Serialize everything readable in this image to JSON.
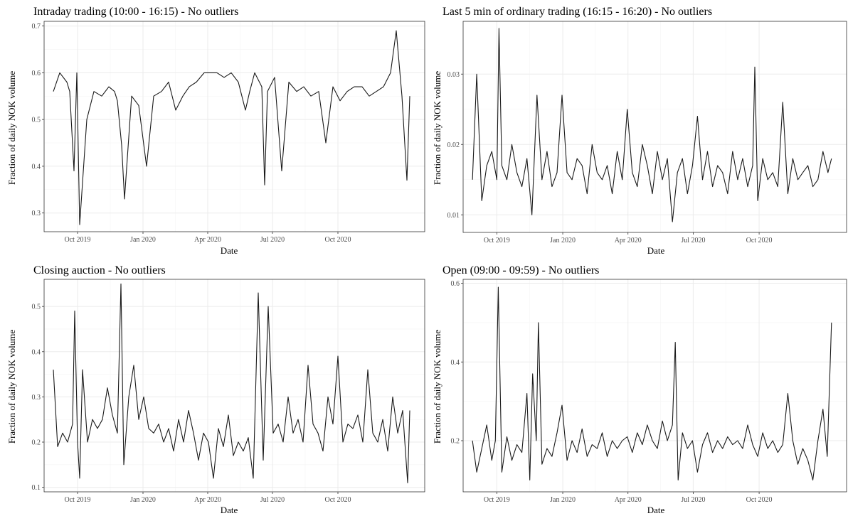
{
  "chart_data": [
    {
      "type": "line",
      "title": "Intraday trading (10:00 - 16:15) - No outliers",
      "xlabel": "Date",
      "ylabel": "Fraction of daily NOK volume",
      "xlim": [
        "2019-08-15",
        "2021-01-31"
      ],
      "ylim": [
        0.26,
        0.71
      ],
      "x_ticks": [
        {
          "date": "2019-10-01",
          "label": "Oct 2019"
        },
        {
          "date": "2020-01-01",
          "label": "Jan 2020"
        },
        {
          "date": "2020-04-01",
          "label": "Apr 2020"
        },
        {
          "date": "2020-07-01",
          "label": "Jul 2020"
        },
        {
          "date": "2020-10-01",
          "label": "Oct 2020"
        }
      ],
      "y_ticks": [
        0.3,
        0.4,
        0.5,
        0.6,
        0.7
      ],
      "grid": true,
      "series": [
        {
          "x": [
            "2019-08-28",
            "2019-09-06",
            "2019-09-16",
            "2019-09-20",
            "2019-09-26",
            "2019-09-30",
            "2019-10-04",
            "2019-10-14",
            "2019-10-24",
            "2019-11-04",
            "2019-11-14",
            "2019-11-22",
            "2019-11-26",
            "2019-12-02",
            "2019-12-06",
            "2019-12-16",
            "2019-12-26",
            "2020-01-06",
            "2020-01-16",
            "2020-01-27",
            "2020-02-06",
            "2020-02-16",
            "2020-02-26",
            "2020-03-06",
            "2020-03-16",
            "2020-03-27",
            "2020-04-03",
            "2020-04-14",
            "2020-04-24",
            "2020-05-04",
            "2020-05-14",
            "2020-05-24",
            "2020-05-30",
            "2020-06-06",
            "2020-06-16",
            "2020-06-20",
            "2020-06-24",
            "2020-07-04",
            "2020-07-14",
            "2020-07-24",
            "2020-08-04",
            "2020-08-14",
            "2020-08-24",
            "2020-09-04",
            "2020-09-14",
            "2020-09-24",
            "2020-10-04",
            "2020-10-14",
            "2020-10-24",
            "2020-11-04",
            "2020-11-14",
            "2020-11-24",
            "2020-12-04",
            "2020-12-14",
            "2020-12-22",
            "2020-12-30",
            "2021-01-06",
            "2021-01-10"
          ],
          "values": [
            0.56,
            0.6,
            0.58,
            0.56,
            0.39,
            0.6,
            0.275,
            0.5,
            0.56,
            0.55,
            0.57,
            0.56,
            0.54,
            0.445,
            0.33,
            0.55,
            0.53,
            0.4,
            0.55,
            0.56,
            0.58,
            0.52,
            0.55,
            0.57,
            0.58,
            0.6,
            0.6,
            0.6,
            0.59,
            0.6,
            0.58,
            0.52,
            0.56,
            0.6,
            0.57,
            0.36,
            0.56,
            0.59,
            0.39,
            0.58,
            0.56,
            0.57,
            0.55,
            0.56,
            0.45,
            0.57,
            0.54,
            0.56,
            0.57,
            0.57,
            0.55,
            0.56,
            0.57,
            0.6,
            0.69,
            0.55,
            0.37,
            0.55
          ]
        }
      ]
    },
    {
      "type": "line",
      "title": "Last 5 min of ordinary trading (16:15 - 16:20) - No outliers",
      "xlabel": "Date",
      "ylabel": "Fraction of daily NOK volume",
      "xlim": [
        "2019-08-15",
        "2021-01-31"
      ],
      "ylim": [
        0.0075,
        0.0375
      ],
      "x_ticks": [
        {
          "date": "2019-10-01",
          "label": "Oct 2019"
        },
        {
          "date": "2020-01-01",
          "label": "Jan 2020"
        },
        {
          "date": "2020-04-01",
          "label": "Apr 2020"
        },
        {
          "date": "2020-07-01",
          "label": "Jul 2020"
        },
        {
          "date": "2020-10-01",
          "label": "Oct 2020"
        }
      ],
      "y_ticks": [
        0.01,
        0.02,
        0.03
      ],
      "grid": true,
      "series": [
        {
          "x": [
            "2019-08-28",
            "2019-09-03",
            "2019-09-10",
            "2019-09-17",
            "2019-09-24",
            "2019-10-01",
            "2019-10-04",
            "2019-10-08",
            "2019-10-15",
            "2019-10-22",
            "2019-10-29",
            "2019-11-05",
            "2019-11-12",
            "2019-11-19",
            "2019-11-26",
            "2019-12-03",
            "2019-12-10",
            "2019-12-17",
            "2019-12-24",
            "2019-12-31",
            "2020-01-07",
            "2020-01-14",
            "2020-01-21",
            "2020-01-28",
            "2020-02-04",
            "2020-02-11",
            "2020-02-18",
            "2020-02-25",
            "2020-03-03",
            "2020-03-10",
            "2020-03-17",
            "2020-03-24",
            "2020-03-31",
            "2020-04-07",
            "2020-04-14",
            "2020-04-21",
            "2020-04-28",
            "2020-05-05",
            "2020-05-12",
            "2020-05-19",
            "2020-05-26",
            "2020-06-02",
            "2020-06-09",
            "2020-06-16",
            "2020-06-23",
            "2020-06-30",
            "2020-07-07",
            "2020-07-14",
            "2020-07-21",
            "2020-07-28",
            "2020-08-04",
            "2020-08-11",
            "2020-08-18",
            "2020-08-25",
            "2020-09-01",
            "2020-09-08",
            "2020-09-15",
            "2020-09-22",
            "2020-09-25",
            "2020-09-29",
            "2020-10-06",
            "2020-10-13",
            "2020-10-20",
            "2020-10-27",
            "2020-11-03",
            "2020-11-10",
            "2020-11-17",
            "2020-11-24",
            "2020-12-01",
            "2020-12-08",
            "2020-12-15",
            "2020-12-22",
            "2020-12-29",
            "2021-01-05",
            "2021-01-10"
          ],
          "values": [
            0.015,
            0.03,
            0.012,
            0.017,
            0.019,
            0.015,
            0.0365,
            0.017,
            0.015,
            0.02,
            0.016,
            0.014,
            0.018,
            0.01,
            0.027,
            0.015,
            0.019,
            0.014,
            0.016,
            0.027,
            0.016,
            0.015,
            0.018,
            0.017,
            0.013,
            0.02,
            0.016,
            0.015,
            0.017,
            0.013,
            0.019,
            0.015,
            0.025,
            0.016,
            0.014,
            0.02,
            0.017,
            0.013,
            0.019,
            0.015,
            0.018,
            0.009,
            0.016,
            0.018,
            0.013,
            0.017,
            0.024,
            0.015,
            0.019,
            0.014,
            0.017,
            0.016,
            0.013,
            0.019,
            0.015,
            0.018,
            0.014,
            0.017,
            0.031,
            0.012,
            0.018,
            0.015,
            0.016,
            0.014,
            0.026,
            0.013,
            0.018,
            0.015,
            0.016,
            0.017,
            0.014,
            0.015,
            0.019,
            0.016,
            0.018
          ]
        }
      ]
    },
    {
      "type": "line",
      "title": "Closing auction - No outliers",
      "xlabel": "Date",
      "ylabel": "Fraction of daily NOK volume",
      "xlim": [
        "2019-08-15",
        "2021-01-31"
      ],
      "ylim": [
        0.09,
        0.56
      ],
      "x_ticks": [
        {
          "date": "2019-10-01",
          "label": "Oct 2019"
        },
        {
          "date": "2020-01-01",
          "label": "Jan 2020"
        },
        {
          "date": "2020-04-01",
          "label": "Apr 2020"
        },
        {
          "date": "2020-07-01",
          "label": "Jul 2020"
        },
        {
          "date": "2020-10-01",
          "label": "Oct 2020"
        }
      ],
      "y_ticks": [
        0.1,
        0.2,
        0.3,
        0.4,
        0.5
      ],
      "grid": true,
      "series": [
        {
          "x": [
            "2019-08-28",
            "2019-09-03",
            "2019-09-10",
            "2019-09-17",
            "2019-09-24",
            "2019-09-27",
            "2019-10-01",
            "2019-10-04",
            "2019-10-08",
            "2019-10-15",
            "2019-10-22",
            "2019-10-29",
            "2019-11-05",
            "2019-11-12",
            "2019-11-19",
            "2019-11-26",
            "2019-12-01",
            "2019-12-05",
            "2019-12-12",
            "2019-12-19",
            "2019-12-26",
            "2020-01-02",
            "2020-01-09",
            "2020-01-16",
            "2020-01-23",
            "2020-01-30",
            "2020-02-06",
            "2020-02-13",
            "2020-02-20",
            "2020-02-27",
            "2020-03-05",
            "2020-03-12",
            "2020-03-19",
            "2020-03-26",
            "2020-04-02",
            "2020-04-09",
            "2020-04-16",
            "2020-04-23",
            "2020-04-30",
            "2020-05-07",
            "2020-05-14",
            "2020-05-21",
            "2020-05-28",
            "2020-06-04",
            "2020-06-11",
            "2020-06-18",
            "2020-06-25",
            "2020-07-02",
            "2020-07-09",
            "2020-07-16",
            "2020-07-23",
            "2020-07-30",
            "2020-08-06",
            "2020-08-13",
            "2020-08-20",
            "2020-08-27",
            "2020-09-03",
            "2020-09-10",
            "2020-09-17",
            "2020-09-24",
            "2020-10-01",
            "2020-10-08",
            "2020-10-15",
            "2020-10-22",
            "2020-10-29",
            "2020-11-05",
            "2020-11-12",
            "2020-11-19",
            "2020-11-26",
            "2020-12-03",
            "2020-12-10",
            "2020-12-17",
            "2020-12-24",
            "2020-12-31",
            "2021-01-07",
            "2021-01-10"
          ],
          "values": [
            0.36,
            0.19,
            0.22,
            0.2,
            0.24,
            0.49,
            0.2,
            0.12,
            0.36,
            0.2,
            0.25,
            0.23,
            0.25,
            0.32,
            0.26,
            0.22,
            0.55,
            0.15,
            0.3,
            0.37,
            0.25,
            0.3,
            0.23,
            0.22,
            0.24,
            0.2,
            0.23,
            0.18,
            0.25,
            0.2,
            0.27,
            0.22,
            0.16,
            0.22,
            0.2,
            0.12,
            0.23,
            0.19,
            0.26,
            0.17,
            0.2,
            0.18,
            0.21,
            0.12,
            0.53,
            0.16,
            0.5,
            0.22,
            0.24,
            0.2,
            0.3,
            0.22,
            0.25,
            0.2,
            0.37,
            0.24,
            0.22,
            0.18,
            0.3,
            0.24,
            0.39,
            0.2,
            0.24,
            0.23,
            0.26,
            0.2,
            0.36,
            0.22,
            0.2,
            0.25,
            0.18,
            0.3,
            0.22,
            0.27,
            0.11,
            0.27
          ]
        }
      ]
    },
    {
      "type": "line",
      "title": "Open (09:00 - 09:59) - No outliers",
      "xlabel": "Date",
      "ylabel": "Fraction of daily NOK volume",
      "xlim": [
        "2019-08-15",
        "2021-01-31"
      ],
      "ylim": [
        0.07,
        0.61
      ],
      "x_ticks": [
        {
          "date": "2019-10-01",
          "label": "Oct 2019"
        },
        {
          "date": "2020-01-01",
          "label": "Jan 2020"
        },
        {
          "date": "2020-04-01",
          "label": "Apr 2020"
        },
        {
          "date": "2020-07-01",
          "label": "Jul 2020"
        },
        {
          "date": "2020-10-01",
          "label": "Oct 2020"
        }
      ],
      "y_ticks": [
        0.2,
        0.4,
        0.6
      ],
      "grid": true,
      "series": [
        {
          "x": [
            "2019-08-28",
            "2019-09-03",
            "2019-09-10",
            "2019-09-17",
            "2019-09-24",
            "2019-09-29",
            "2019-10-03",
            "2019-10-08",
            "2019-10-15",
            "2019-10-22",
            "2019-10-29",
            "2019-11-05",
            "2019-11-12",
            "2019-11-16",
            "2019-11-20",
            "2019-11-25",
            "2019-11-28",
            "2019-12-03",
            "2019-12-10",
            "2019-12-17",
            "2019-12-24",
            "2019-12-31",
            "2020-01-07",
            "2020-01-14",
            "2020-01-21",
            "2020-01-28",
            "2020-02-04",
            "2020-02-11",
            "2020-02-18",
            "2020-02-25",
            "2020-03-03",
            "2020-03-10",
            "2020-03-17",
            "2020-03-24",
            "2020-03-31",
            "2020-04-07",
            "2020-04-14",
            "2020-04-21",
            "2020-04-28",
            "2020-05-05",
            "2020-05-12",
            "2020-05-19",
            "2020-05-26",
            "2020-06-02",
            "2020-06-06",
            "2020-06-10",
            "2020-06-16",
            "2020-06-23",
            "2020-06-30",
            "2020-07-07",
            "2020-07-14",
            "2020-07-21",
            "2020-07-28",
            "2020-08-04",
            "2020-08-11",
            "2020-08-18",
            "2020-08-25",
            "2020-09-01",
            "2020-09-08",
            "2020-09-15",
            "2020-09-22",
            "2020-09-29",
            "2020-10-06",
            "2020-10-13",
            "2020-10-20",
            "2020-10-27",
            "2020-11-03",
            "2020-11-10",
            "2020-11-17",
            "2020-11-24",
            "2020-12-01",
            "2020-12-08",
            "2020-12-15",
            "2020-12-22",
            "2020-12-29",
            "2021-01-04",
            "2021-01-10"
          ],
          "values": [
            0.2,
            0.12,
            0.18,
            0.24,
            0.15,
            0.2,
            0.59,
            0.12,
            0.21,
            0.15,
            0.19,
            0.17,
            0.32,
            0.1,
            0.37,
            0.2,
            0.5,
            0.14,
            0.18,
            0.16,
            0.22,
            0.29,
            0.15,
            0.2,
            0.17,
            0.23,
            0.16,
            0.19,
            0.18,
            0.22,
            0.16,
            0.2,
            0.18,
            0.2,
            0.21,
            0.17,
            0.22,
            0.19,
            0.24,
            0.2,
            0.18,
            0.25,
            0.2,
            0.24,
            0.45,
            0.1,
            0.22,
            0.18,
            0.2,
            0.12,
            0.19,
            0.22,
            0.17,
            0.2,
            0.18,
            0.21,
            0.19,
            0.2,
            0.18,
            0.24,
            0.19,
            0.16,
            0.22,
            0.18,
            0.2,
            0.17,
            0.19,
            0.32,
            0.2,
            0.14,
            0.18,
            0.15,
            0.1,
            0.2,
            0.28,
            0.16,
            0.5
          ]
        }
      ]
    }
  ]
}
